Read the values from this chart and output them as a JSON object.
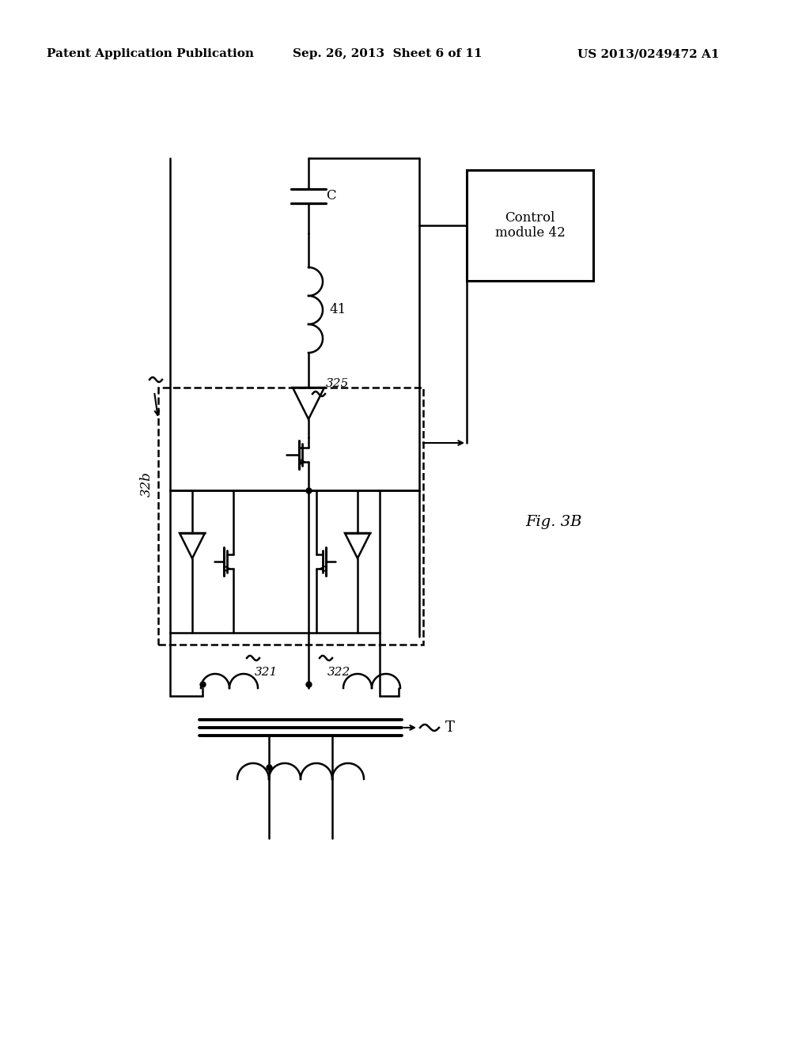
{
  "bg_color": "#ffffff",
  "line_color": "#000000",
  "header_left": "Patent Application Publication",
  "header_center": "Sep. 26, 2013  Sheet 6 of 11",
  "header_right": "US 2013/0249472 A1",
  "fig_label": "Fig. 3B",
  "label_32b": "32b",
  "label_41": "41",
  "label_C": "C",
  "label_325": "325",
  "label_321": "321",
  "label_322": "322",
  "label_T": "T",
  "control_box_text": "Control\nmodule 42"
}
